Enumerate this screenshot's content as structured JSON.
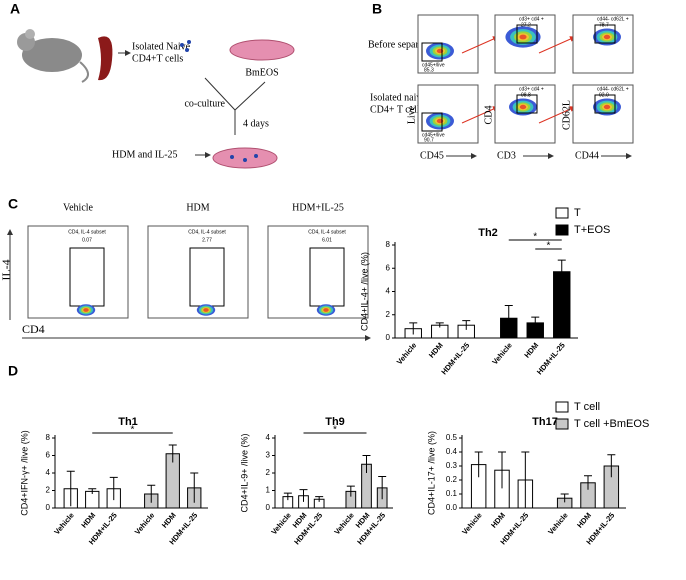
{
  "panels": {
    "a": {
      "label": "A",
      "isolated": "Isolated  Naive",
      "cells": "CD4+T cells",
      "dish": "BmEOS",
      "coculture": "co-culture",
      "days": "4 days",
      "treatment": "HDM and IL-25"
    },
    "b": {
      "label": "B",
      "rows": [
        "Before separation",
        "Isolated naive",
        "CD4+ T cells"
      ],
      "ylabels": [
        "Live",
        "CD4",
        "CD62L"
      ],
      "xlabels": [
        "CD45",
        "CD3",
        "CD44"
      ],
      "gates": [
        [
          [
            "cd45+/live",
            "85.3"
          ],
          [
            "cd3+ cd4 +",
            "27.2"
          ],
          [
            "cd44- cd62L +",
            "78.7"
          ]
        ],
        [
          [
            "cd45+/live",
            "90.7"
          ],
          [
            "cd3+ cd4 +",
            "98.8"
          ],
          [
            "cd44- cd62L +",
            "92.0"
          ]
        ]
      ]
    },
    "c": {
      "label": "C",
      "columns": [
        "Vehicle",
        "HDM",
        "HDM+IL-25"
      ],
      "gate": "CD4, IL-4 subset",
      "gate_values": [
        "0.07",
        "2.77",
        "6.01"
      ],
      "ylabel": "IL-4",
      "xlabel": "CD4"
    },
    "d": {
      "label": "D"
    }
  },
  "chart_data": [
    {
      "type": "bar",
      "title": "Th2",
      "ylabel": "CD4+IL-4+ /live (%)",
      "categories": [
        "Vehicle",
        "HDM",
        "HDM+IL-25"
      ],
      "ylim": [
        0,
        8
      ],
      "yticks": [
        0,
        2,
        4,
        6,
        8
      ],
      "legend": true,
      "annotations": [
        "*",
        "*"
      ],
      "series": [
        {
          "name": "T",
          "color": "#ffffff",
          "values": [
            0.8,
            1.1,
            1.1
          ],
          "errors": [
            0.5,
            0.2,
            0.4
          ]
        },
        {
          "name": "T+EOS",
          "color": "#000000",
          "values": [
            1.7,
            1.3,
            5.7
          ],
          "errors": [
            1.1,
            0.5,
            1.0
          ]
        }
      ]
    },
    {
      "type": "bar",
      "title": "Th1",
      "ylabel": "CD4+IFN-γ+ /live (%)",
      "categories": [
        "Vehicle",
        "HDM",
        "HDM+IL-25"
      ],
      "ylim": [
        0,
        8
      ],
      "yticks": [
        0,
        2,
        4,
        6,
        8
      ],
      "legend": false,
      "annotations": [
        "*"
      ],
      "series": [
        {
          "color": "#ffffff",
          "values": [
            2.2,
            1.9,
            2.2
          ],
          "errors": [
            2.0,
            0.3,
            1.3
          ]
        },
        {
          "color": "#c8c8c8",
          "values": [
            1.6,
            6.2,
            2.3
          ],
          "errors": [
            1.0,
            1.0,
            1.7
          ]
        }
      ]
    },
    {
      "type": "bar",
      "title": "Th9",
      "ylabel": "CD4+IL-9+ /live (%)",
      "categories": [
        "Vehicle",
        "HDM",
        "HDM+IL-25"
      ],
      "ylim": [
        0,
        4
      ],
      "yticks": [
        0,
        1,
        2,
        3,
        4
      ],
      "legend": false,
      "annotations": [
        "*"
      ],
      "series": [
        {
          "color": "#ffffff",
          "values": [
            0.65,
            0.7,
            0.5
          ],
          "errors": [
            0.2,
            0.35,
            0.15
          ]
        },
        {
          "color": "#c8c8c8",
          "values": [
            0.95,
            2.5,
            1.15
          ],
          "errors": [
            0.3,
            0.5,
            0.65
          ]
        }
      ]
    },
    {
      "type": "bar",
      "title": "Th17",
      "ylabel": "CD4+IL-17+ /live (%)",
      "categories": [
        "Vehicle",
        "HDM",
        "HDM+IL-25"
      ],
      "ylim": [
        0,
        0.5
      ],
      "yticks": [
        {
          "value": 0,
          "label": "0.0"
        },
        0.1,
        0.2,
        0.3,
        0.4,
        0.5
      ],
      "legend": true,
      "annotations": [],
      "series": [
        {
          "name": "T cell",
          "color": "#ffffff",
          "values": [
            0.31,
            0.27,
            0.2
          ],
          "errors": [
            0.09,
            0.13,
            0.2
          ]
        },
        {
          "name": "T cell +BmEOS",
          "color": "#c8c8c8",
          "values": [
            0.07,
            0.18,
            0.3
          ],
          "errors": [
            0.03,
            0.05,
            0.08
          ]
        }
      ]
    }
  ]
}
